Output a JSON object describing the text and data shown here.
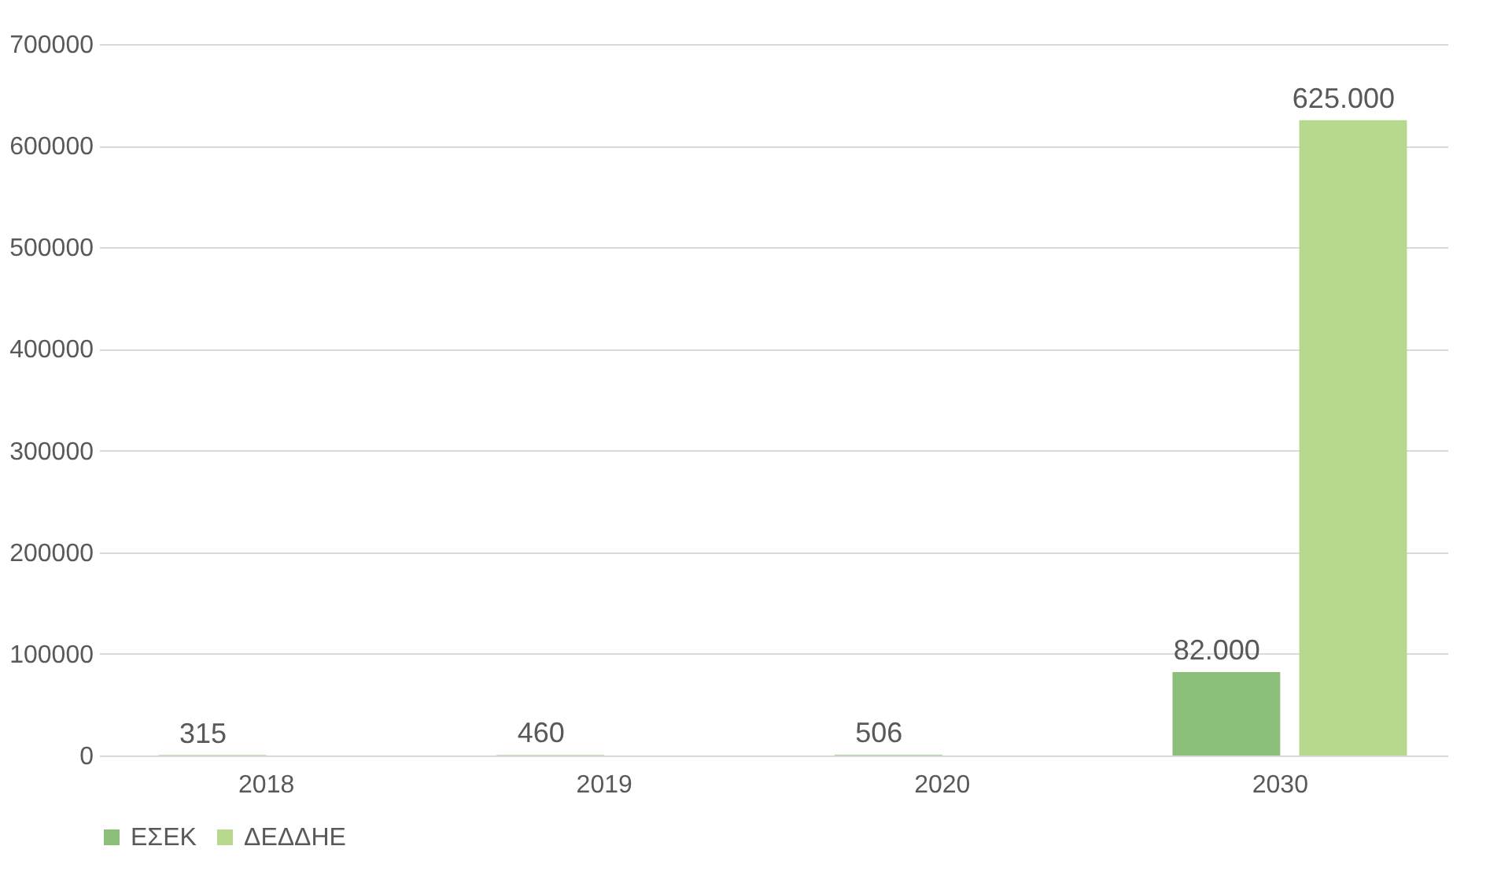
{
  "chart_data": {
    "type": "bar",
    "categories": [
      "2018",
      "2019",
      "2020",
      "2030"
    ],
    "series": [
      {
        "name": "ΕΣΕΚ",
        "color": "#8cc07a",
        "values": [
          315,
          460,
          506,
          82000
        ],
        "value_labels": [
          "315",
          "460",
          "506",
          "82.000"
        ]
      },
      {
        "name": "ΔΕΔΔΗΕ",
        "color": "#b7d98e",
        "values": [
          null,
          null,
          null,
          625000
        ],
        "value_labels": [
          null,
          null,
          null,
          "625.000"
        ]
      }
    ],
    "ylim": [
      0,
      700000
    ],
    "yticks": [
      0,
      100000,
      200000,
      300000,
      400000,
      500000,
      600000,
      700000
    ],
    "grid": "y",
    "legend": "bottom"
  }
}
